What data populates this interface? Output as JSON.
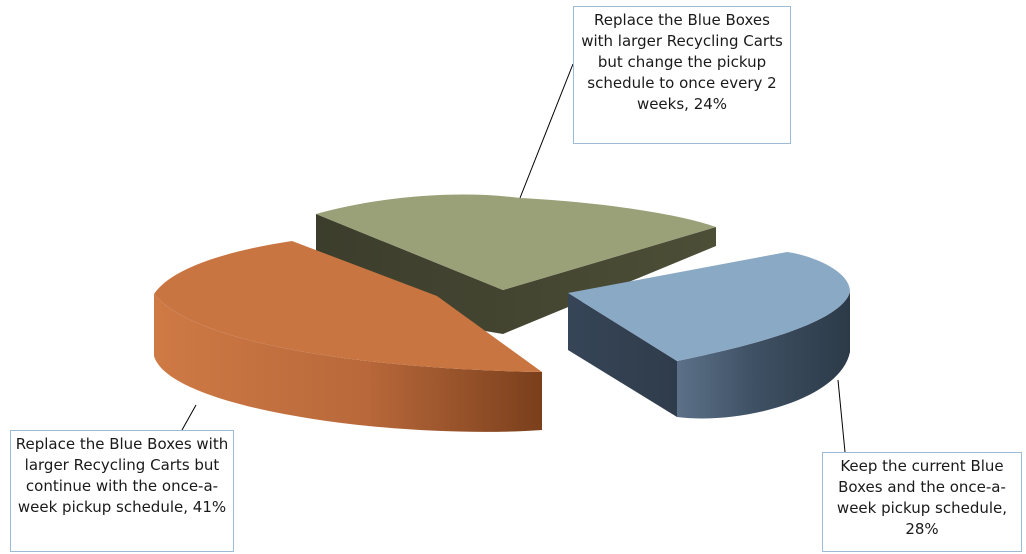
{
  "chart_data": {
    "type": "pie",
    "style": "3d-exploded",
    "slices": [
      {
        "label": "Replace the Blue Boxes with larger Recycling Carts but change the pickup schedule to once every 2 weeks",
        "value": 24,
        "display": "Replace the Blue Boxes with larger Recycling Carts but change the pickup schedule to once every 2 weeks, 24%",
        "color": "#9aa077"
      },
      {
        "label": "Keep the current Blue Boxes and the once-a-week pickup schedule",
        "value": 28,
        "display": "Keep the current Blue Boxes and the once-a-week pickup schedule, 28%",
        "color": "#8aa9c5"
      },
      {
        "label": "Replace the Blue Boxes with larger Recycling Carts but continue with the once-a-week pickup schedule",
        "value": 41,
        "display": "Replace the Blue Boxes with larger Recycling Carts but continue with the once-a-week pickup schedule, 41%",
        "color": "#c87541"
      }
    ]
  }
}
